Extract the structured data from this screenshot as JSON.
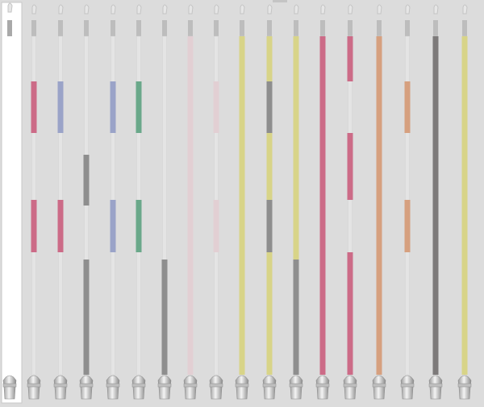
{
  "colors": [
    "#cc6b87",
    "#9aa3c8",
    "#8e8e8e",
    "#6aa88a",
    "#e2cfd3",
    "#d8d488",
    "#d6a07f",
    "#7d7a7a"
  ]
}
